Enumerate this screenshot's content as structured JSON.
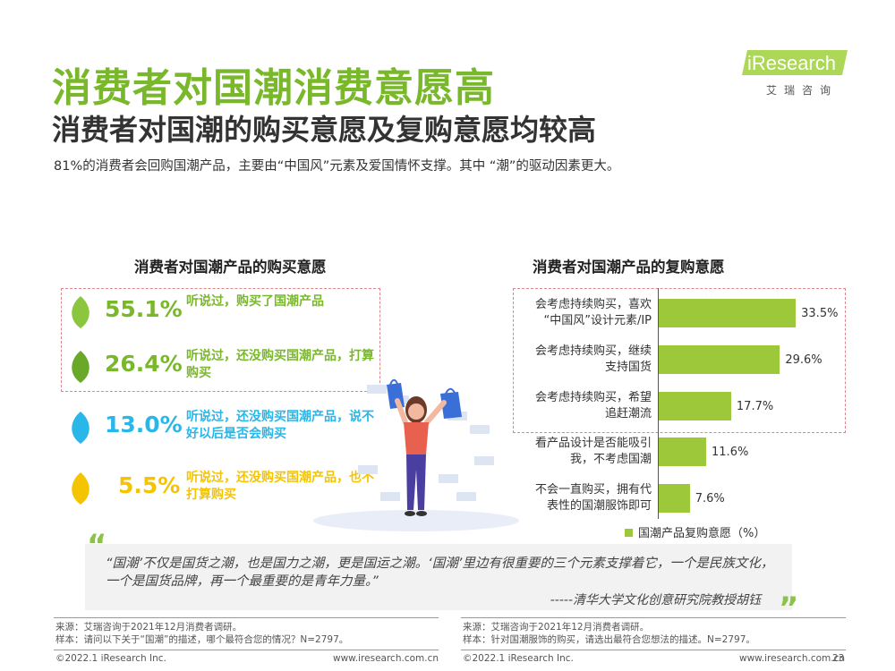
{
  "header": {
    "title": "消费者对国潮消费意愿高",
    "subtitle": "消费者对国潮的购买意愿及复购意愿均较高",
    "summary": "81%的消费者会回购国潮产品，主要由“中国风”元素及爱国情怀支撑。其中 “潮”的驱动因素更大。"
  },
  "logo": {
    "brand": "iResearch",
    "cn": "艾瑞咨询",
    "accent": "#9fd03a"
  },
  "left_panel": {
    "title": "消费者对国潮产品的购买意愿",
    "items": [
      {
        "pct": "55.1%",
        "desc": "听说过，购买了国潮产品",
        "color": "#8cc63f"
      },
      {
        "pct": "26.4%",
        "desc": "听说过，还没购买国潮产品，打算购买",
        "color": "#7ab82b"
      },
      {
        "pct": "13.0%",
        "desc": "听说过，还没购买国潮产品，说不好以后是否会购买",
        "color": "#29b6e8"
      },
      {
        "pct": "5.5%",
        "desc": "听说过，还没购买国潮产品，也不打算购买",
        "color": "#f5c400"
      }
    ]
  },
  "right_panel": {
    "title": "消费者对国潮产品的复购意愿",
    "legend": "国潮产品复购意愿（%）"
  },
  "chart_data": {
    "type": "bar",
    "orientation": "horizontal",
    "categories": [
      "会考虑持续购买，喜欢“中国风”设计元素/IP",
      "会考虑持续购买，继续支持国货",
      "会考虑持续购买，希望追赶潮流",
      "看产品设计是否能吸引我，不考虑国潮",
      "不会一直购买，拥有代表性的国潮服饰即可"
    ],
    "label_lines": [
      [
        "会考虑持续购买，喜欢",
        "“中国风”设计元素/IP"
      ],
      [
        "会考虑持续购买，继续",
        "支持国货"
      ],
      [
        "会考虑持续购买，希望",
        "追赶潮流"
      ],
      [
        "看产品设计是否能吸引",
        "我，不考虑国潮"
      ],
      [
        "不会一直购买，拥有代",
        "表性的国潮服饰即可"
      ]
    ],
    "series": [
      {
        "name": "国潮产品复购意愿（%）",
        "values": [
          33.5,
          29.6,
          17.7,
          11.6,
          7.6
        ]
      }
    ],
    "value_labels": [
      "33.5%",
      "29.6%",
      "17.7%",
      "11.6%",
      "7.6%"
    ],
    "color": "#9dc83a",
    "legend": "bottom"
  },
  "quote": {
    "text": "“国潮’不仅是国货之潮，也是国力之潮，更是国运之潮。‘国潮’里边有很重要的三个元素支撑着它，一个是民族文化，一个是国货品牌，再一个最重要的是青年力量。”",
    "author": "-----清华大学文化创意研究院教授胡钰"
  },
  "footnotes": {
    "left_source": "来源：艾瑞咨询于2021年12月消费者调研。",
    "left_sample": "样本：请问以下关于“国潮”的描述，哪个最符合您的情况？N=2797。",
    "right_source": "来源：艾瑞咨询于2021年12月消费者调研。",
    "right_sample": "样本：针对国潮服饰的购买，请选出最符合您想法的描述。N=2797。"
  },
  "footer": {
    "copyright_left": "©2022.1 iResearch Inc.",
    "url_left": "www.iresearch.com.cn",
    "copyright_right": "©2022.1 iResearch Inc.",
    "url_right": "www.iresearch.com.cn",
    "page": "23"
  }
}
